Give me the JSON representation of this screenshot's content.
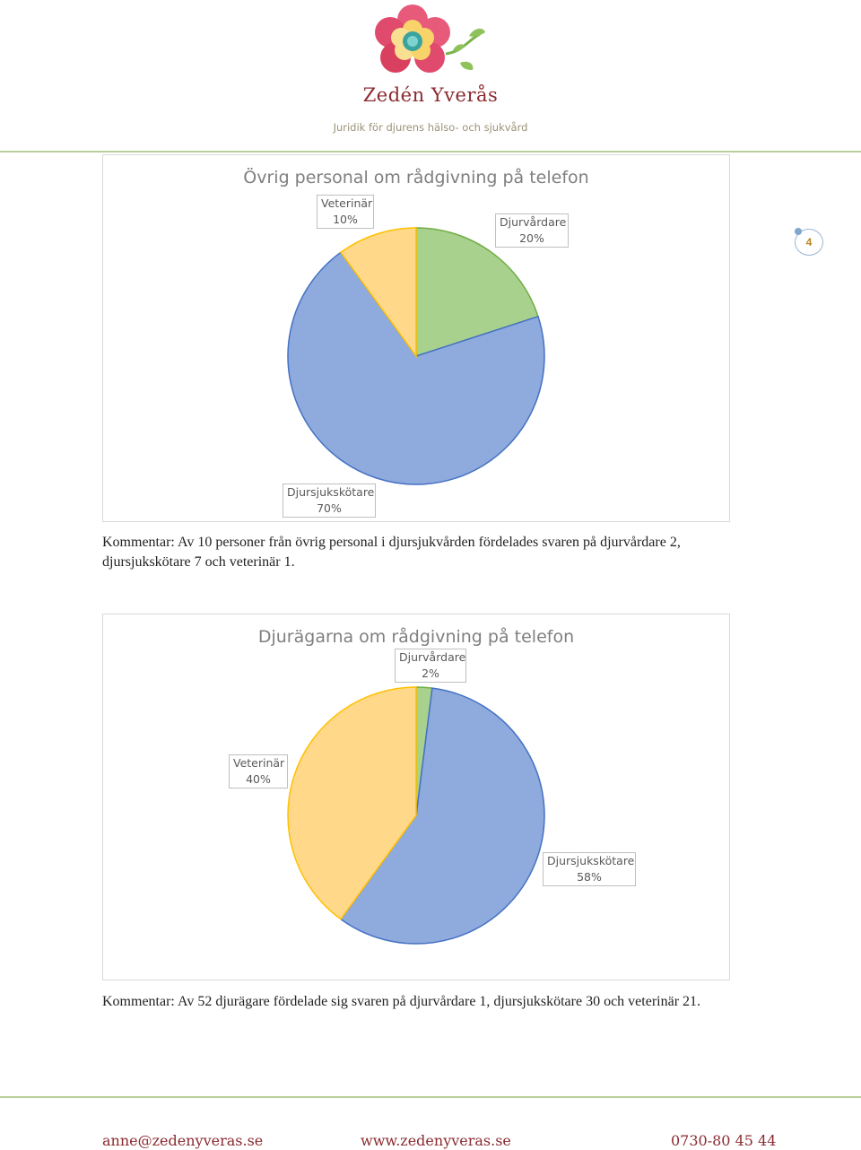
{
  "header": {
    "brand_name": "Zedén Yverås",
    "tagline": "Juridik för djurens hälso- och sjukvård"
  },
  "page_number": "4",
  "charts": [
    {
      "title": "Övrig personal om rådgivning på telefon",
      "labels": [
        {
          "name": "Veterinär",
          "pct": "10%"
        },
        {
          "name": "Djurvårdare",
          "pct": "20%"
        },
        {
          "name": "Djursjukskötare",
          "pct": "70%"
        }
      ]
    },
    {
      "title": "Djurägarna om rådgivning på telefon",
      "labels": [
        {
          "name": "Djurvårdare",
          "pct": "2%"
        },
        {
          "name": "Veterinär",
          "pct": "40%"
        },
        {
          "name": "Djursjukskötare",
          "pct": "58%"
        }
      ]
    }
  ],
  "chart_data": [
    {
      "type": "pie",
      "title": "Övrig personal om rådgivning på telefon",
      "categories": [
        "Djurvårdare",
        "Djursjukskötare",
        "Veterinär"
      ],
      "values": [
        20,
        70,
        10
      ],
      "colors": [
        "#a9d18e",
        "#8faadc",
        "#ffd88a"
      ],
      "edge_colors": [
        "#70ad47",
        "#4472c4",
        "#ffc000"
      ]
    },
    {
      "type": "pie",
      "title": "Djurägarna om rådgivning på telefon",
      "categories": [
        "Djurvårdare",
        "Djursjukskötare",
        "Veterinär"
      ],
      "values": [
        2,
        58,
        40
      ],
      "colors": [
        "#a9d18e",
        "#8faadc",
        "#ffd88a"
      ],
      "edge_colors": [
        "#70ad47",
        "#4472c4",
        "#ffc000"
      ]
    }
  ],
  "comments": [
    "Kommentar: Av 10 personer från övrig personal i djursjukvården fördelades svaren på djurvårdare 2, djursjukskötare 7 och veterinär 1.",
    "Kommentar: Av 52 djurägare fördelade sig svaren på djurvårdare 1, djursjukskötare 30 och veterinär 21."
  ],
  "footer": {
    "email": "anne@zedenyveras.se",
    "website": "www.zedenyveras.se",
    "phone": "0730-80 45 44"
  }
}
